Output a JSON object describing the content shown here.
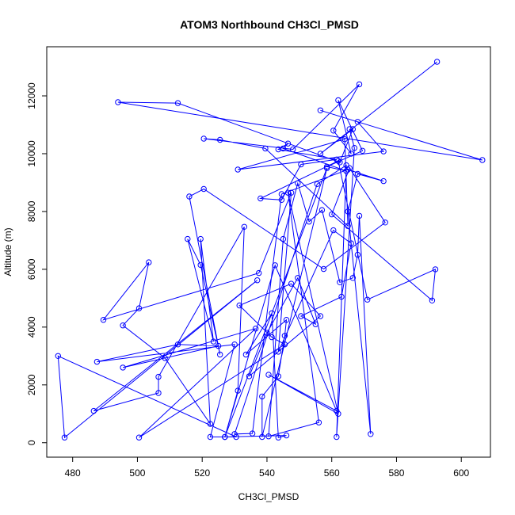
{
  "chart_data": {
    "type": "line",
    "title": "ATOM3 Northbound CH3Cl_PMSD",
    "xlabel": "CH3Cl_PMSD",
    "ylabel": "Altitude (m)",
    "xlim": [
      472,
      609
    ],
    "ylim": [
      -500,
      13700
    ],
    "xticks": [
      480,
      500,
      520,
      540,
      560,
      580,
      600
    ],
    "yticks": [
      0,
      2000,
      4000,
      6000,
      8000,
      10000,
      12000
    ],
    "grid": false,
    "marker": "open-circle",
    "line_color": "#0000ff",
    "series": [
      {
        "points": [
          [
            592.5,
            13180
          ],
          [
            556.5,
            10000
          ],
          [
            566.5,
            10850
          ],
          [
            562.5,
            9700
          ],
          [
            512.5,
            11750
          ],
          [
            494.0,
            11780
          ],
          [
            606.5,
            9780
          ],
          [
            556.5,
            11500
          ],
          [
            568.0,
            11100
          ],
          [
            576.0,
            10080
          ],
          [
            531.0,
            9450
          ],
          [
            564.0,
            10500
          ],
          [
            565.0,
            7500
          ],
          [
            539.5,
            10180
          ],
          [
            525.5,
            10480
          ],
          [
            520.5,
            10520
          ],
          [
            548.0,
            10150
          ],
          [
            568.5,
            12400
          ],
          [
            560.5,
            10800
          ],
          [
            566.0,
            10000
          ],
          [
            562.0,
            11850
          ],
          [
            569.5,
            10100
          ],
          [
            558.5,
            9550
          ],
          [
            564.5,
            9400
          ],
          [
            545.0,
            10180
          ],
          [
            546.5,
            10350
          ],
          [
            543.5,
            10150
          ],
          [
            561.5,
            9800
          ],
          [
            550.5,
            9630
          ],
          [
            544.5,
            8400
          ],
          [
            538.0,
            8450
          ],
          [
            562.0,
            9750
          ],
          [
            571.0,
            4950
          ],
          [
            592.0,
            6000
          ],
          [
            591.0,
            4920
          ],
          [
            560.0,
            7900
          ],
          [
            565.5,
            9500
          ],
          [
            576.5,
            7620
          ],
          [
            557.5,
            6010
          ],
          [
            520.5,
            8780
          ],
          [
            516.0,
            8520
          ],
          [
            525.5,
            3050
          ],
          [
            519.5,
            6150
          ],
          [
            515.5,
            7050
          ],
          [
            523.5,
            3500
          ],
          [
            519.5,
            7050
          ],
          [
            522.5,
            650
          ],
          [
            508.5,
            2930
          ],
          [
            495.5,
            4060
          ],
          [
            500.5,
            4650
          ],
          [
            503.5,
            6240
          ],
          [
            489.5,
            4250
          ],
          [
            537.5,
            5870
          ],
          [
            547.5,
            8650
          ],
          [
            543.5,
            3150
          ],
          [
            560.5,
            7350
          ],
          [
            566.0,
            6900
          ],
          [
            563.0,
            5050
          ],
          [
            550.5,
            4380
          ],
          [
            555.0,
            4100
          ],
          [
            549.5,
            5700
          ],
          [
            540.0,
            3800
          ],
          [
            534.5,
            2300
          ],
          [
            556.5,
            4380
          ],
          [
            547.5,
            5500
          ],
          [
            531.5,
            4750
          ],
          [
            541.5,
            3650
          ],
          [
            545.5,
            3400
          ],
          [
            500.5,
            180
          ],
          [
            536.5,
            3950
          ],
          [
            495.5,
            2600
          ],
          [
            525.0,
            3350
          ],
          [
            512.5,
            3400
          ],
          [
            487.5,
            2800
          ],
          [
            530.0,
            3400
          ],
          [
            522.5,
            200
          ],
          [
            530.5,
            200
          ],
          [
            475.5,
            3000
          ],
          [
            477.5,
            180
          ],
          [
            537.0,
            5620
          ],
          [
            486.5,
            1100
          ],
          [
            506.5,
            1720
          ],
          [
            506.5,
            2280
          ],
          [
            533.0,
            7470
          ],
          [
            531.0,
            1800
          ],
          [
            527.0,
            200
          ],
          [
            546.0,
            250
          ],
          [
            543.5,
            180
          ],
          [
            541.5,
            4480
          ],
          [
            533.5,
            3050
          ],
          [
            546.0,
            4250
          ],
          [
            545.5,
            3700
          ],
          [
            543.5,
            2300
          ],
          [
            538.5,
            1600
          ],
          [
            538.5,
            200
          ],
          [
            558.5,
            9500
          ],
          [
            527.0,
            200
          ],
          [
            542.5,
            6140
          ],
          [
            561.5,
            1100
          ],
          [
            540.5,
            2350
          ],
          [
            562.0,
            1000
          ],
          [
            546.5,
            8650
          ],
          [
            556.0,
            700
          ],
          [
            540.5,
            220
          ],
          [
            545.0,
            7050
          ],
          [
            549.5,
            8980
          ],
          [
            553.0,
            7650
          ],
          [
            557.0,
            8050
          ],
          [
            562.5,
            5550
          ],
          [
            566.5,
            5700
          ],
          [
            568.0,
            6500
          ],
          [
            568.5,
            7850
          ],
          [
            572.0,
            300
          ],
          [
            565.0,
            8000
          ],
          [
            568.0,
            9300
          ],
          [
            576.0,
            9050
          ],
          [
            565.0,
            9450
          ],
          [
            544.5,
            8600
          ],
          [
            535.5,
            320
          ],
          [
            530.0,
            300
          ],
          [
            555.5,
            8950
          ],
          [
            564.5,
            9600
          ],
          [
            561.5,
            200
          ],
          [
            567.0,
            10200
          ],
          [
            565.5,
            10850
          ]
        ]
      }
    ]
  }
}
